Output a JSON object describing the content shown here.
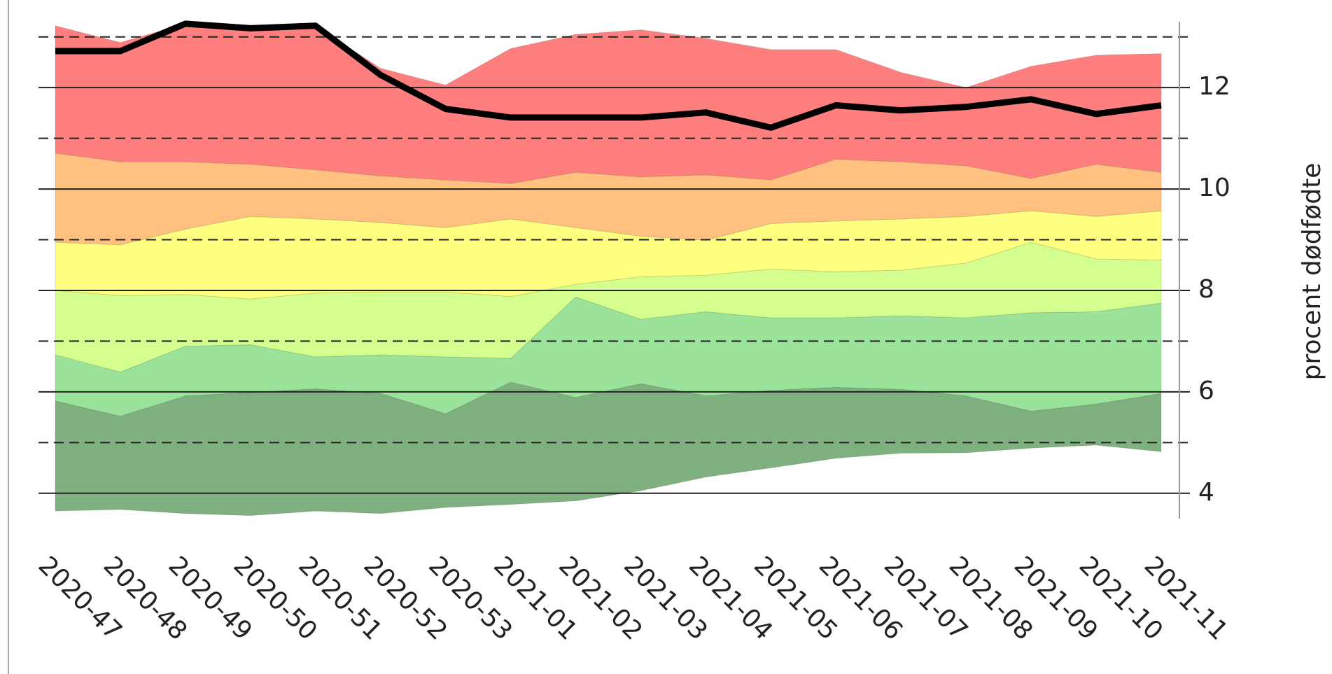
{
  "chart_data": {
    "type": "area",
    "ylabel": "procent dødfødte",
    "categories": [
      "2020-47",
      "2020-48",
      "2020-49",
      "2020-50",
      "2020-51",
      "2020-52",
      "2020-53",
      "2021-01",
      "2021-02",
      "2021-03",
      "2021-04",
      "2021-05",
      "2021-06",
      "2021-07",
      "2021-08",
      "2021-09",
      "2021-10",
      "2021-11"
    ],
    "band_edges": [
      [
        3.65,
        3.68,
        3.6,
        3.56,
        3.65,
        3.6,
        3.72,
        3.78,
        3.85,
        4.05,
        4.32,
        4.5,
        4.69,
        4.79,
        4.8,
        4.89,
        4.95,
        4.82
      ],
      [
        5.82,
        5.52,
        5.92,
        5.99,
        6.06,
        5.97,
        5.57,
        6.19,
        5.89,
        6.16,
        5.92,
        6.03,
        6.09,
        6.05,
        5.92,
        5.62,
        5.76,
        5.97
      ],
      [
        6.73,
        6.39,
        6.9,
        6.93,
        6.69,
        6.73,
        6.69,
        6.66,
        7.87,
        7.43,
        7.58,
        7.46,
        7.46,
        7.5,
        7.46,
        7.56,
        7.58,
        7.75
      ],
      [
        8.0,
        7.9,
        7.92,
        7.83,
        7.95,
        7.97,
        7.97,
        7.88,
        8.12,
        8.27,
        8.3,
        8.42,
        8.37,
        8.4,
        8.54,
        8.95,
        8.62,
        8.6
      ],
      [
        8.95,
        8.9,
        9.21,
        9.46,
        9.41,
        9.34,
        9.24,
        9.41,
        9.24,
        9.07,
        8.99,
        9.32,
        9.37,
        9.41,
        9.46,
        9.57,
        9.46,
        9.57
      ],
      [
        10.71,
        10.54,
        10.54,
        10.49,
        10.38,
        10.26,
        10.18,
        10.11,
        10.33,
        10.24,
        10.28,
        10.18,
        10.59,
        10.54,
        10.46,
        10.21,
        10.49,
        10.33
      ],
      [
        13.22,
        12.89,
        13.26,
        13.14,
        13.22,
        12.38,
        12.05,
        12.77,
        13.05,
        13.14,
        12.97,
        12.75,
        12.75,
        12.3,
        12.0,
        12.42,
        12.64,
        12.67
      ]
    ],
    "band_colors": [
      "#7fb07f",
      "#9be39b",
      "#d4ff8f",
      "#ffff80",
      "#ffc080",
      "#ff7f7f"
    ],
    "line": {
      "color": "#000000",
      "values": [
        12.72,
        12.72,
        13.26,
        13.17,
        13.22,
        12.25,
        11.58,
        11.41,
        11.41,
        11.41,
        11.51,
        11.21,
        11.65,
        11.55,
        11.62,
        11.77,
        11.48,
        11.65
      ]
    },
    "ylim": [
      3.5,
      13.3
    ],
    "yticks": [
      4,
      6,
      8,
      10,
      12
    ],
    "minor_yticks": [
      5,
      7,
      9,
      11,
      13
    ],
    "grid": true
  }
}
